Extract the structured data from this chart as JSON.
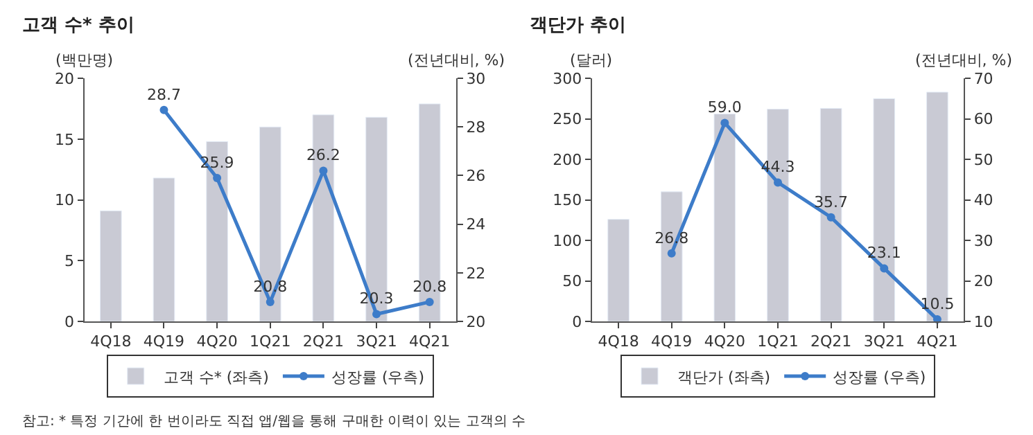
{
  "chart_data": [
    {
      "type": "bar",
      "title": "고객 수* 추이",
      "ylabel": "(백만명)",
      "y2label": "(전년대비, %)",
      "categories": [
        "4Q18",
        "4Q19",
        "4Q20",
        "1Q21",
        "2Q21",
        "3Q21",
        "4Q21"
      ],
      "series": [
        {
          "name": "고객 수* (좌측)",
          "color": "#c9cad4",
          "values": [
            9.1,
            11.8,
            14.8,
            16.0,
            17.0,
            16.8,
            17.9
          ]
        },
        {
          "name": "성장률 (우측)",
          "type": "line",
          "axis": "y2",
          "color": "#3d7cc9",
          "marker": "circle",
          "values": [
            null,
            28.7,
            25.9,
            20.8,
            26.2,
            20.3,
            20.8
          ],
          "value_labels": [
            null,
            "28.7",
            "25.9",
            "20.8",
            "26.2",
            "20.3",
            "20.8"
          ]
        }
      ],
      "ylim": [
        0,
        20
      ],
      "yticks": [
        0,
        5,
        10,
        15,
        20
      ],
      "y2lim": [
        20,
        30
      ],
      "y2ticks": [
        20,
        22,
        24,
        26,
        28,
        30
      ],
      "legend": "bottom",
      "annotations": [
        "참고: * 특정 기간에 한 번이라도 직접 앱/웹을 통해 구매한 이력이 있는 고객의 수"
      ]
    },
    {
      "type": "bar",
      "title": "객단가 추이",
      "ylabel": "(달러)",
      "y2label": "(전년대비, %)",
      "categories": [
        "4Q18",
        "4Q19",
        "4Q20",
        "1Q21",
        "2Q21",
        "3Q21",
        "4Q21"
      ],
      "series": [
        {
          "name": "객단가 (좌측)",
          "color": "#c9cad4",
          "values": [
            126,
            160,
            256,
            262,
            263,
            275,
            283
          ]
        },
        {
          "name": "성장률 (우측)",
          "type": "line",
          "axis": "y2",
          "color": "#3d7cc9",
          "marker": "circle",
          "values": [
            null,
            26.8,
            59.0,
            44.3,
            35.7,
            23.1,
            10.5
          ],
          "value_labels": [
            null,
            "26.8",
            "59.0",
            "44.3",
            "35.7",
            "23.1",
            "10.5"
          ]
        }
      ],
      "ylim": [
        0,
        300
      ],
      "yticks": [
        0,
        50,
        100,
        150,
        200,
        250,
        300
      ],
      "y2lim": [
        10,
        70
      ],
      "y2ticks": [
        10,
        20,
        30,
        40,
        50,
        60,
        70
      ],
      "legend": "bottom"
    }
  ]
}
